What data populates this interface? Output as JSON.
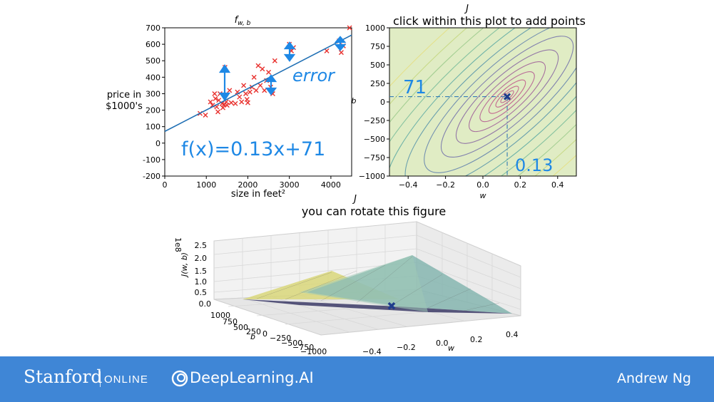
{
  "chart_data": [
    {
      "type": "scatter",
      "title": "f_{w,b}",
      "xlabel": "size in feet²",
      "ylabel_line1": "price in",
      "ylabel_line2": "$1000's",
      "xlim": [
        0,
        4500
      ],
      "ylim": [
        -200,
        700
      ],
      "xticks": [
        0,
        1000,
        2000,
        3000,
        4000
      ],
      "yticks": [
        -200,
        -100,
        0,
        100,
        200,
        300,
        400,
        500,
        600,
        700
      ],
      "points": [
        [
          850,
          180
        ],
        [
          980,
          170
        ],
        [
          1100,
          250
        ],
        [
          1150,
          230
        ],
        [
          1200,
          300
        ],
        [
          1220,
          270
        ],
        [
          1250,
          220
        ],
        [
          1280,
          190
        ],
        [
          1300,
          260
        ],
        [
          1330,
          300
        ],
        [
          1380,
          240
        ],
        [
          1400,
          215
        ],
        [
          1430,
          235
        ],
        [
          1450,
          460
        ],
        [
          1480,
          250
        ],
        [
          1500,
          230
        ],
        [
          1560,
          320
        ],
        [
          1600,
          245
        ],
        [
          1700,
          240
        ],
        [
          1750,
          310
        ],
        [
          1800,
          280
        ],
        [
          1850,
          250
        ],
        [
          1900,
          350
        ],
        [
          1950,
          300
        ],
        [
          1980,
          265
        ],
        [
          2000,
          245
        ],
        [
          2050,
          310
        ],
        [
          2100,
          340
        ],
        [
          2150,
          400
        ],
        [
          2200,
          320
        ],
        [
          2250,
          470
        ],
        [
          2300,
          350
        ],
        [
          2350,
          450
        ],
        [
          2400,
          320
        ],
        [
          2450,
          380
        ],
        [
          2500,
          430
        ],
        [
          2550,
          340
        ],
        [
          2600,
          300
        ],
        [
          2650,
          500
        ],
        [
          3000,
          600
        ],
        [
          3050,
          560
        ],
        [
          3100,
          580
        ],
        [
          3900,
          560
        ],
        [
          4200,
          620
        ],
        [
          4250,
          550
        ],
        [
          4300,
          590
        ],
        [
          4450,
          700
        ]
      ],
      "model": {
        "w": 0.13,
        "b": 71
      },
      "annotation_error": "error",
      "annotation_equation": "f(x)=0.13x+71",
      "marker_color": "#e8312e",
      "line_color": "#1f6fb4",
      "annotation_color": "#1e88e5"
    },
    {
      "type": "contour",
      "title_top": "J",
      "title": "click within this plot to add points",
      "xlabel": "w",
      "ylabel": "b",
      "xlim": [
        -0.5,
        0.5
      ],
      "ylim": [
        -1000,
        1000
      ],
      "xticks": [
        -0.4,
        -0.2,
        0.0,
        0.2,
        0.4
      ],
      "yticks": [
        -1000,
        -750,
        -500,
        -250,
        0,
        250,
        500,
        750,
        1000
      ],
      "minimum": {
        "w": 0.13,
        "b": 71
      },
      "annotation_w": "0.13",
      "annotation_b": "71"
    },
    {
      "type": "surface",
      "title_top": "J",
      "title": "you can rotate this figure",
      "xlabel": "w",
      "ylabel": "b",
      "zlabel": "J(w, b)",
      "zscale": "1e8",
      "zticks": [
        "2.5",
        "2.0",
        "1.5",
        "1.0",
        "0.5",
        "0.0"
      ],
      "bticks": [
        "1000",
        "750",
        "500",
        "250",
        "0",
        "−250",
        "−500",
        "−750",
        "−1000"
      ],
      "wticks": [
        "−0.4",
        "−0.2",
        "0.0",
        "0.2",
        "0.4"
      ]
    }
  ],
  "footer": {
    "stanford": "Stanford",
    "online": "ONLINE",
    "deeplearning": "DeepLearning.AI",
    "author": "Andrew Ng"
  }
}
